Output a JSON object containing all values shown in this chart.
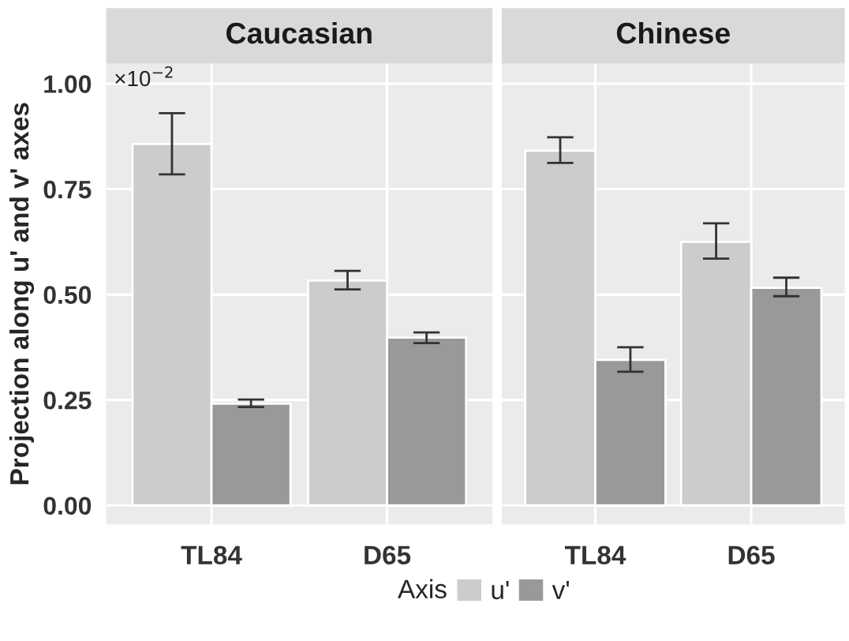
{
  "chart_data": [
    {
      "type": "bar",
      "title": "Caucasian",
      "ylabel": "Projection along u' and v' axes",
      "legend_title": "Axis",
      "legend": "bottom",
      "grid": true,
      "categories": [
        "TL84",
        "D65"
      ],
      "series": [
        {
          "name": "u'",
          "color": "#cccccc",
          "values": [
            0.857,
            0.533
          ],
          "errors": [
            [
              0.785,
              0.93
            ],
            [
              0.512,
              0.556
            ]
          ]
        },
        {
          "name": "v'",
          "color": "#999999",
          "values": [
            0.241,
            0.398
          ],
          "errors": [
            [
              0.233,
              0.251
            ],
            [
              0.385,
              0.41
            ]
          ]
        }
      ],
      "ylim": [
        -0.045,
        1.048
      ],
      "yticks": [
        {
          "value": 0,
          "label": "0.00"
        },
        {
          "value": 0.25,
          "label": "0.25"
        },
        {
          "value": 0.5,
          "label": "0.50"
        },
        {
          "value": 0.75,
          "label": "0.75"
        },
        {
          "value": 1,
          "label": "1.00"
        }
      ],
      "annotations": [
        "×10$^{−2}$"
      ]
    },
    {
      "type": "bar",
      "title": "Chinese",
      "grid": true,
      "tick_labels": "x",
      "categories": [
        "TL84",
        "D65"
      ],
      "series": [
        {
          "color": "#cccccc",
          "values": [
            0.841,
            0.625
          ],
          "errors": [
            [
              0.812,
              0.873
            ],
            [
              0.585,
              0.669
            ]
          ]
        },
        {
          "color": "#999999",
          "values": [
            0.345,
            0.516
          ],
          "errors": [
            [
              0.317,
              0.375
            ],
            [
              0.496,
              0.54
            ]
          ]
        }
      ],
      "ylim": [
        -0.045,
        1.048
      ]
    }
  ]
}
